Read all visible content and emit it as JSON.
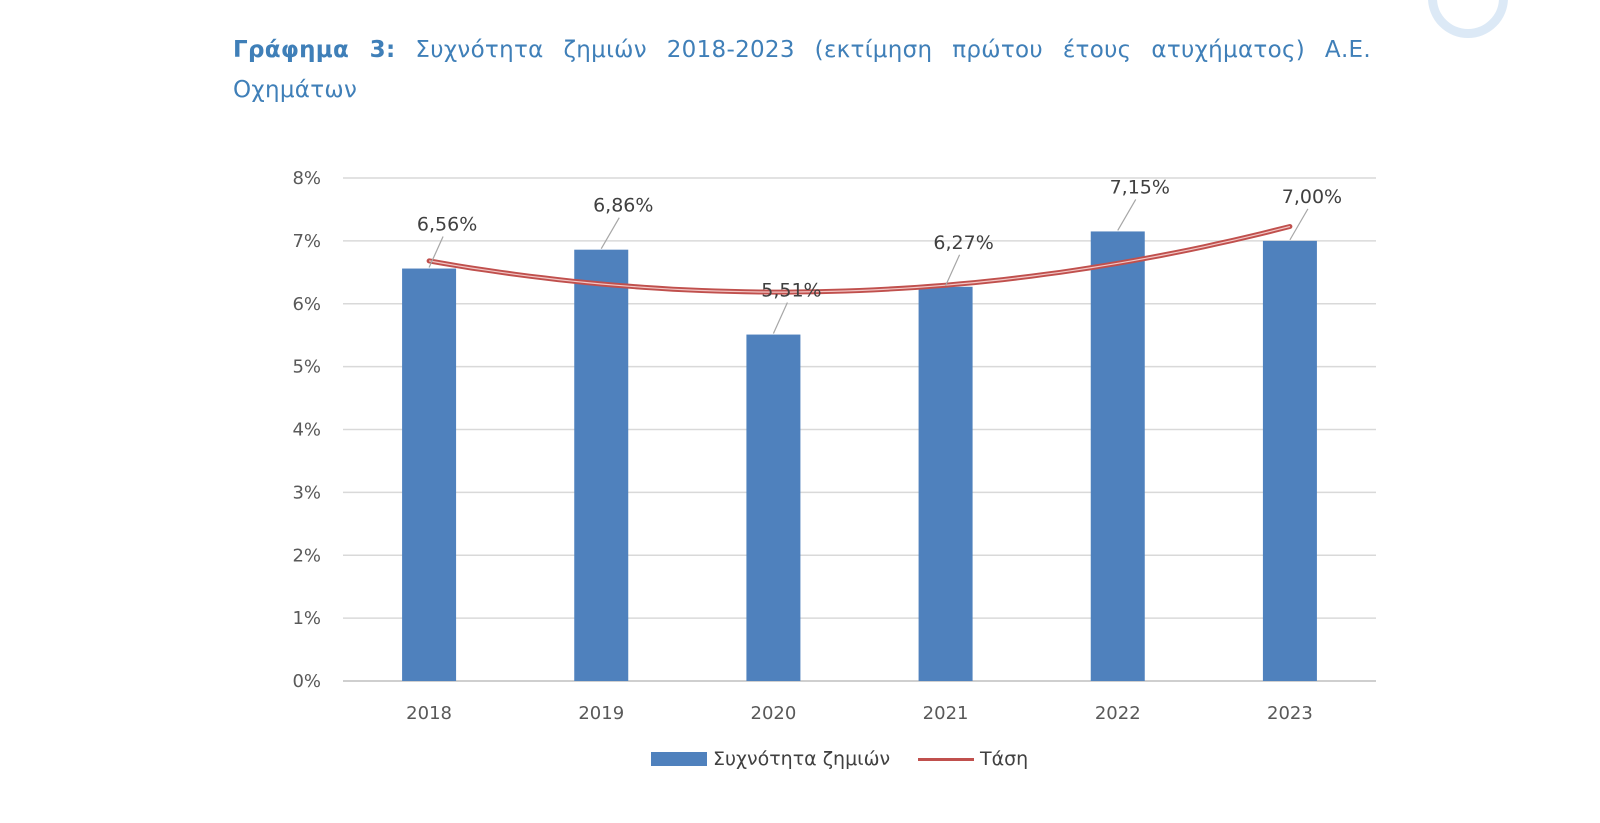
{
  "title": {
    "label": "Γράφημα 3:",
    "text": "Συχνότητα ζημιών 2018-2023 (εκτίμηση πρώτου έτους ατυχήματος) Α.Ε. Οχημάτων"
  },
  "colors": {
    "bar": "#4f81bd",
    "trend": "#c0504d",
    "grid": "#d9d9d9",
    "title": "#3f7fb8"
  },
  "chart_data": {
    "type": "bar",
    "categories": [
      "2018",
      "2019",
      "2020",
      "2021",
      "2022",
      "2023"
    ],
    "values": [
      6.56,
      6.86,
      5.51,
      6.27,
      7.15,
      7.0
    ],
    "value_labels": [
      "6,56%",
      "6,86%",
      "5,51%",
      "6,27%",
      "7,15%",
      "7,00%"
    ],
    "yticks": [
      "0%",
      "1%",
      "2%",
      "3%",
      "4%",
      "5%",
      "6%",
      "7%",
      "8%"
    ],
    "ylim": [
      0,
      8
    ],
    "grid": true,
    "series": [
      {
        "name": "Συχνότητα ζημιών",
        "type": "bar"
      },
      {
        "name": "Τάση",
        "type": "polynomial-trendline"
      }
    ],
    "legend_position": "bottom"
  }
}
